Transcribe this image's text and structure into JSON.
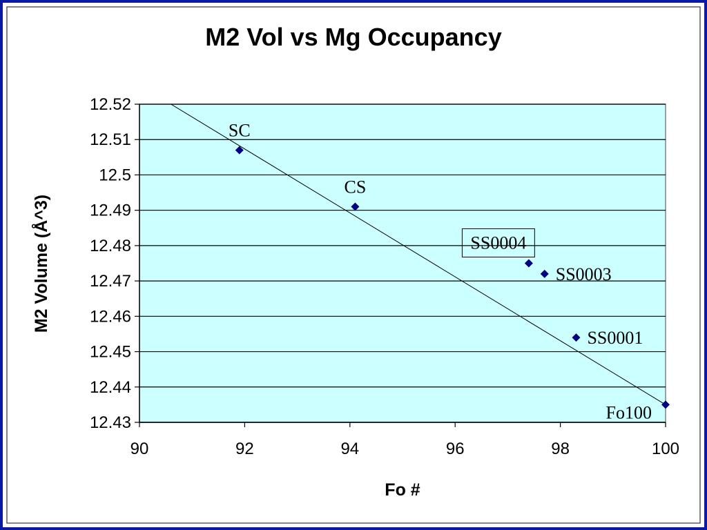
{
  "colors": {
    "frame_outer": "#0a1a9e",
    "frame_inner": "#5a5a5a",
    "plot_bg": "#ccffff",
    "gridline": "#000000",
    "marker": "#000080",
    "trendline": "#000000"
  },
  "chart_data": {
    "type": "scatter",
    "title": "M2 Vol vs Mg Occupancy",
    "xlabel": "Fo #",
    "ylabel": "M2 Volume (Å^3)",
    "xlim": [
      90,
      100
    ],
    "ylim": [
      12.43,
      12.52
    ],
    "x_ticks": [
      "90",
      "92",
      "94",
      "96",
      "98",
      "100"
    ],
    "y_ticks": [
      "12.52",
      "12.51",
      "12.5",
      "12.49",
      "12.48",
      "12.47",
      "12.46",
      "12.45",
      "12.44",
      "12.43"
    ],
    "grid": "horizontal",
    "marker": "diamond",
    "points": [
      {
        "label": "SC",
        "x": 91.9,
        "y": 12.507,
        "label_pos": "above",
        "boxed": false
      },
      {
        "label": "CS",
        "x": 94.1,
        "y": 12.491,
        "label_pos": "above",
        "boxed": false
      },
      {
        "label": "SS0004",
        "x": 97.4,
        "y": 12.475,
        "label_pos": "above-left",
        "boxed": true
      },
      {
        "label": "SS0003",
        "x": 97.7,
        "y": 12.472,
        "label_pos": "right",
        "boxed": false
      },
      {
        "label": "SS0001",
        "x": 98.3,
        "y": 12.454,
        "label_pos": "right",
        "boxed": false
      },
      {
        "label": "Fo100",
        "x": 100,
        "y": 12.435,
        "label_pos": "below-left",
        "boxed": false
      }
    ],
    "trendline": {
      "type": "linear",
      "x_start": 90.6,
      "y_start": 12.52,
      "x_end": 100,
      "y_end": 12.435
    }
  }
}
